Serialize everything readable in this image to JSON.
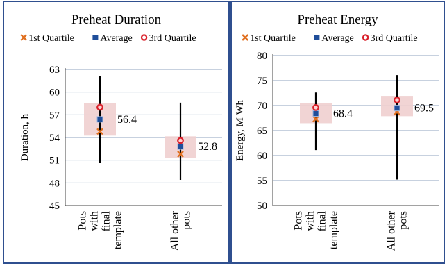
{
  "colors": {
    "panel_border": "#2f4f8f",
    "grid": "#8fa3bf",
    "iqr_box": "#f0cfcf",
    "whisker": "#000000",
    "q1_marker": "#e07020",
    "average_marker": "#1f4e9a",
    "q3_marker": "#d9202a"
  },
  "chart_data": [
    {
      "type": "box",
      "title": "Preheat Duration",
      "ylabel": "Duration, h",
      "ylim": [
        45,
        63
      ],
      "yticks": [
        45,
        48,
        51,
        54,
        57,
        60,
        63
      ],
      "grid": true,
      "legend": [
        "1st Quartile",
        "Average",
        "3rd Quartile"
      ],
      "legend_position": "top",
      "categories": [
        "Pots with final template",
        "All other pots"
      ],
      "category_lines": [
        [
          "Pots",
          "with",
          "final",
          "template"
        ],
        [
          "All other",
          "pots"
        ]
      ],
      "series": [
        {
          "name": "1st Quartile",
          "values": [
            54.8,
            51.8
          ]
        },
        {
          "name": "Average",
          "values": [
            56.4,
            52.8
          ]
        },
        {
          "name": "3rd Quartile",
          "values": [
            58.0,
            53.6
          ]
        }
      ],
      "whisker_min": [
        50.6,
        48.4
      ],
      "whisker_max": [
        62.1,
        58.6
      ],
      "data_labels": [
        "56.4",
        "52.8"
      ]
    },
    {
      "type": "box",
      "title": "Preheat Energy",
      "ylabel": "Energy,  M Wh",
      "ylim": [
        50,
        80
      ],
      "yticks": [
        50,
        55,
        60,
        65,
        70,
        75,
        80
      ],
      "grid": true,
      "legend": [
        "1st Quartile",
        "Average",
        "3rd Quartile"
      ],
      "legend_position": "top",
      "categories": [
        "Pots with final template",
        "All other pots"
      ],
      "category_lines": [
        [
          "Pots",
          "with",
          "final",
          "template"
        ],
        [
          "All other",
          "pots"
        ]
      ],
      "series": [
        {
          "name": "1st Quartile",
          "values": [
            67.3,
            68.7
          ]
        },
        {
          "name": "Average",
          "values": [
            68.4,
            69.5
          ]
        },
        {
          "name": "3rd Quartile",
          "values": [
            69.6,
            71.1
          ]
        }
      ],
      "whisker_min": [
        61.1,
        55.2
      ],
      "whisker_max": [
        72.6,
        76.1
      ],
      "data_labels": [
        "68.4",
        "69.5"
      ]
    }
  ]
}
